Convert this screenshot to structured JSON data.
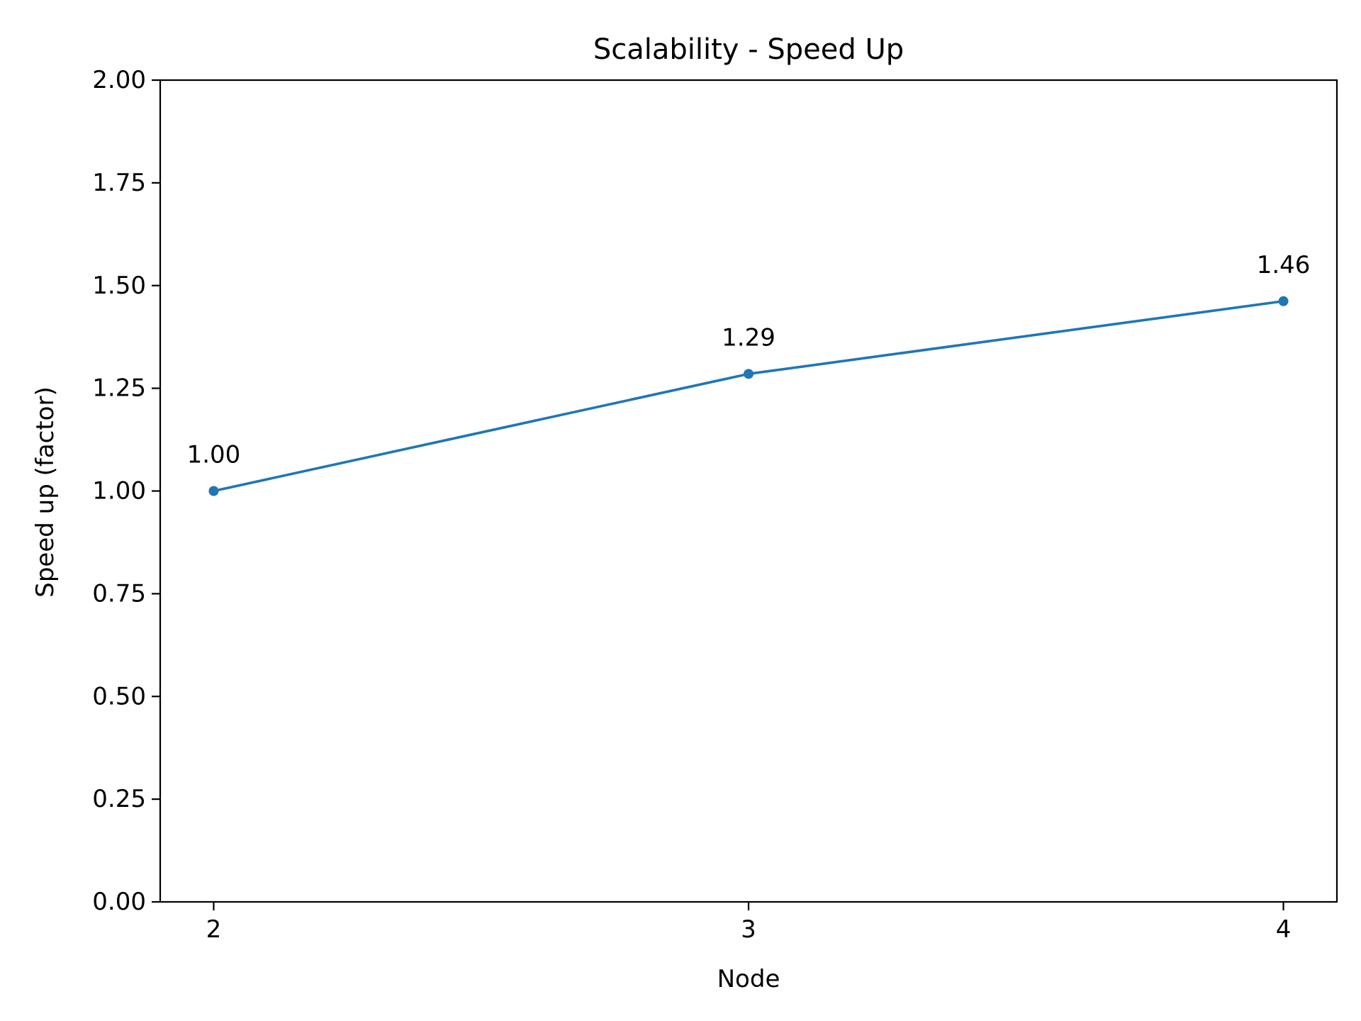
{
  "chart_data": {
    "type": "line",
    "title": "Scalability - Speed Up",
    "xlabel": "Node",
    "ylabel": "Speed up (factor)",
    "x": [
      2,
      3,
      4
    ],
    "x_tick_labels": [
      "2",
      "3",
      "4"
    ],
    "series": [
      {
        "values": [
          1.0,
          1.285,
          1.462
        ],
        "data_labels": [
          "1.00",
          "1.29",
          "1.46"
        ],
        "color": "#1f77b4",
        "marker": "circle"
      }
    ],
    "ylim": [
      0,
      2
    ],
    "xlim": [
      1.9,
      4.1
    ],
    "y_ticks": [
      0,
      0.25,
      0.5,
      0.75,
      1.0,
      1.25,
      1.5,
      1.75,
      2.0
    ],
    "y_tick_labels": [
      "0.00",
      "0.25",
      "0.50",
      "0.75",
      "1.00",
      "1.25",
      "1.50",
      "1.75",
      "2.00"
    ],
    "grid": false,
    "legend": "none"
  }
}
